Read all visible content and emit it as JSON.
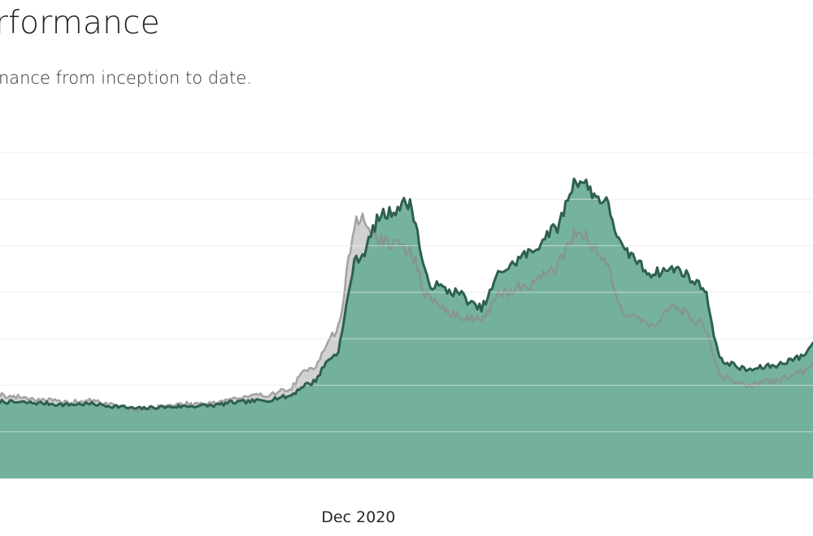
{
  "header": {
    "title": "rformance",
    "subtitle": "nance from inception to date."
  },
  "colors": {
    "portfolio_fill": "#6fae9b",
    "portfolio_line": "#2e5f50",
    "benchmark_fill": "#c9c9c9",
    "benchmark_line": "#8c8c8c",
    "gridline": "#e1e1e1",
    "background": "#ffffff"
  },
  "chart_data": {
    "type": "area",
    "title": "",
    "xlabel": "",
    "ylabel": "",
    "grid": true,
    "legend": "none",
    "x_ticks": [
      "Dec 2020"
    ],
    "x": [
      "2019-09-01",
      "2019-10-01",
      "2019-11-01",
      "2019-12-01",
      "2020-01-01",
      "2020-02-01",
      "2020-03-01",
      "2020-04-01",
      "2020-05-01",
      "2020-06-01",
      "2020-07-01",
      "2020-08-01",
      "2020-09-01",
      "2020-10-01",
      "2020-11-01",
      "2020-12-01",
      "2021-01-01",
      "2021-02-01",
      "2021-03-01",
      "2021-04-01",
      "2021-05-01",
      "2021-06-01",
      "2021-07-01",
      "2021-08-01",
      "2021-09-01",
      "2021-10-01",
      "2021-11-01",
      "2021-12-01",
      "2022-01-01",
      "2022-02-01",
      "2022-03-01",
      "2022-04-01",
      "2022-05-01",
      "2022-06-01",
      "2022-07-01"
    ],
    "series": [
      {
        "values": [
          1.0,
          0.98,
          0.97,
          0.95,
          0.96,
          0.93,
          0.9,
          0.92,
          0.93,
          0.94,
          0.98,
          1.0,
          1.05,
          1.22,
          1.58,
          2.85,
          3.4,
          3.55,
          2.5,
          2.4,
          2.2,
          2.7,
          2.9,
          3.2,
          3.85,
          3.6,
          2.9,
          2.65,
          2.7,
          2.5,
          1.5,
          1.4,
          1.45,
          1.55,
          1.8
        ]
      },
      {
        "values": [
          1.1,
          1.05,
          1.02,
          0.98,
          1.0,
          0.95,
          0.88,
          0.93,
          0.96,
          0.98,
          1.03,
          1.07,
          1.13,
          1.4,
          1.85,
          3.35,
          3.05,
          2.95,
          2.3,
          2.1,
          2.05,
          2.4,
          2.5,
          2.7,
          3.2,
          2.85,
          2.1,
          2.0,
          2.2,
          2.0,
          1.3,
          1.2,
          1.25,
          1.35,
          1.55
        ]
      }
    ],
    "ylim": [
      0,
      4.2
    ],
    "y_gridlines": [
      0,
      0.6,
      1.2,
      1.8,
      2.4,
      3.0,
      3.6,
      4.2
    ]
  }
}
